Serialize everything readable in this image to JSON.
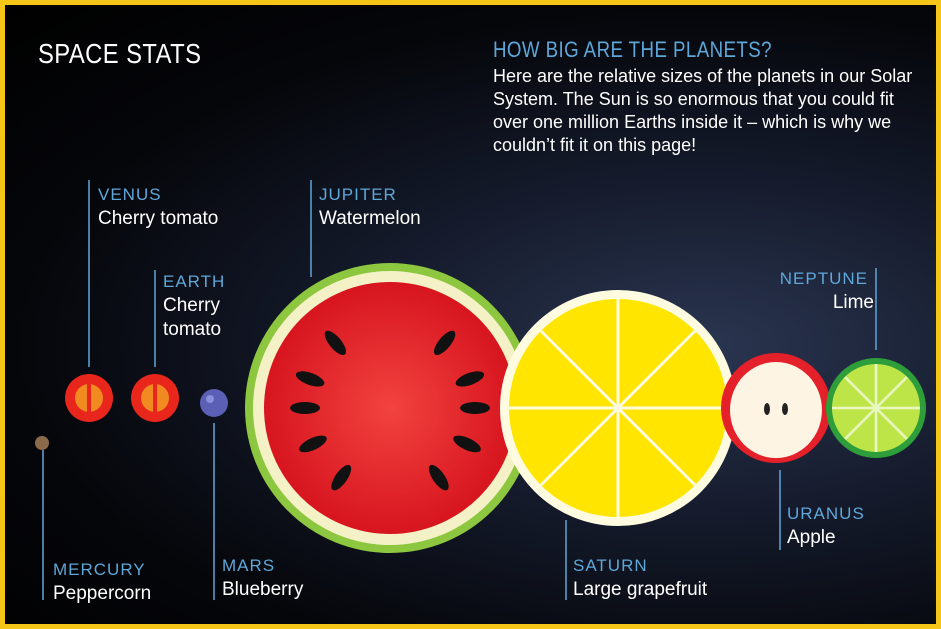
{
  "header": {
    "title": "SPACE STATS"
  },
  "intro": {
    "heading": "HOW BIG ARE THE PLANETS?",
    "text": "Here are the relative sizes of the planets in our Solar System. The Sun is so enormous that you could fit over one million Earths inside it – which is why we couldn’t fit it on this page!"
  },
  "planets": [
    {
      "name": "MERCURY",
      "fruit": "Peppercorn"
    },
    {
      "name": "VENUS",
      "fruit": "Cherry tomato"
    },
    {
      "name": "EARTH",
      "fruit": "Cherry tomato"
    },
    {
      "name": "MARS",
      "fruit": "Blueberry"
    },
    {
      "name": "JUPITER",
      "fruit": "Watermelon"
    },
    {
      "name": "SATURN",
      "fruit": "Large grapefruit"
    },
    {
      "name": "URANUS",
      "fruit": "Apple"
    },
    {
      "name": "NEPTUNE",
      "fruit": "Lime"
    }
  ]
}
